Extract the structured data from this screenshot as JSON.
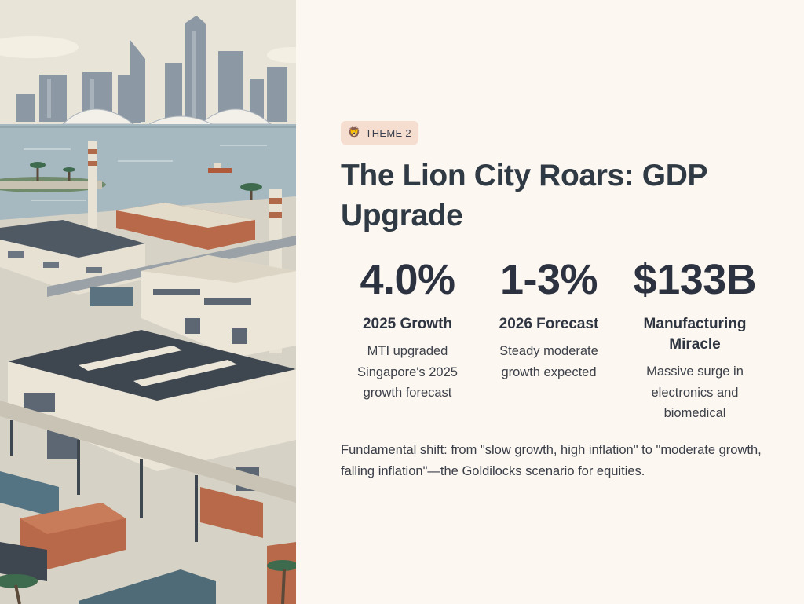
{
  "illustration": {
    "alt": "Singapore skyline, waterfront and industrial manufacturing facility illustration"
  },
  "badge": {
    "icon": "lion-icon",
    "glyph": "🦁",
    "label": "THEME 2"
  },
  "title": "The Lion City Roars: GDP Upgrade",
  "stats": [
    {
      "value": "4.0%",
      "label": "2025 Growth",
      "description": "MTI upgraded Singapore's 2025 growth forecast"
    },
    {
      "value": "1-3%",
      "label": "2026 Forecast",
      "description": "Steady moderate growth expected"
    },
    {
      "value": "$133B",
      "label": "Manufacturing Miracle",
      "description": "Massive surge in electronics and biomedical"
    }
  ],
  "summary": "Fundamental shift: from \"slow growth, high inflation\" to \"moderate growth, falling inflation\"—the Goldilocks scenario for equities.",
  "colors": {
    "background": "#fcf7f1",
    "badge_bg": "#f5ddd0",
    "text": "#2e3340",
    "title": "#2f3a44"
  }
}
